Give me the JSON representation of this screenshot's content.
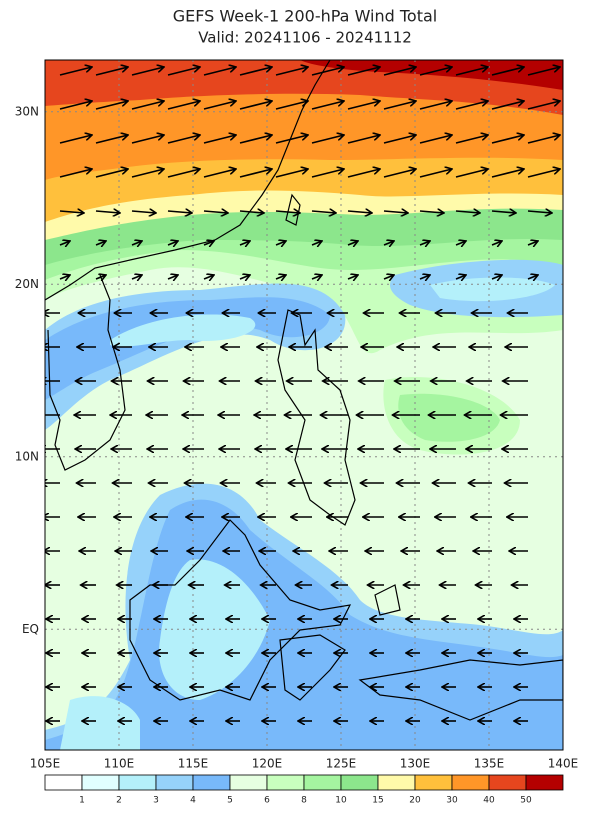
{
  "chart_data": {
    "type": "contour",
    "title": "GEFS Week-1 200-hPa Wind Total",
    "subtitle": "Valid: 20241106 - 20241112",
    "xlim": [
      105,
      140
    ],
    "ylim": [
      -7,
      33
    ],
    "xticks": [
      {
        "value": 105,
        "label": "105E"
      },
      {
        "value": 110,
        "label": "110E"
      },
      {
        "value": 115,
        "label": "115E"
      },
      {
        "value": 120,
        "label": "120E"
      },
      {
        "value": 125,
        "label": "125E"
      },
      {
        "value": 130,
        "label": "130E"
      },
      {
        "value": 135,
        "label": "135E"
      },
      {
        "value": 140,
        "label": "140E"
      }
    ],
    "yticks": [
      {
        "value": 0,
        "label": "EQ"
      },
      {
        "value": 10,
        "label": "10N"
      },
      {
        "value": 20,
        "label": "20N"
      },
      {
        "value": 30,
        "label": "30N"
      }
    ],
    "grid": true,
    "levels": [
      1,
      2,
      3,
      4,
      5,
      6,
      8,
      10,
      15,
      20,
      30,
      40,
      50
    ],
    "colors": [
      "#ffffff",
      "#e1ffff",
      "#b4f0fa",
      "#96d2fa",
      "#78b9fa",
      "#e6ffe1",
      "#c8ffbe",
      "#a5f5a0",
      "#8ce68c",
      "#fffaaa",
      "#ffc03c",
      "#ff9628",
      "#e6461e",
      "#b40000"
    ]
  }
}
